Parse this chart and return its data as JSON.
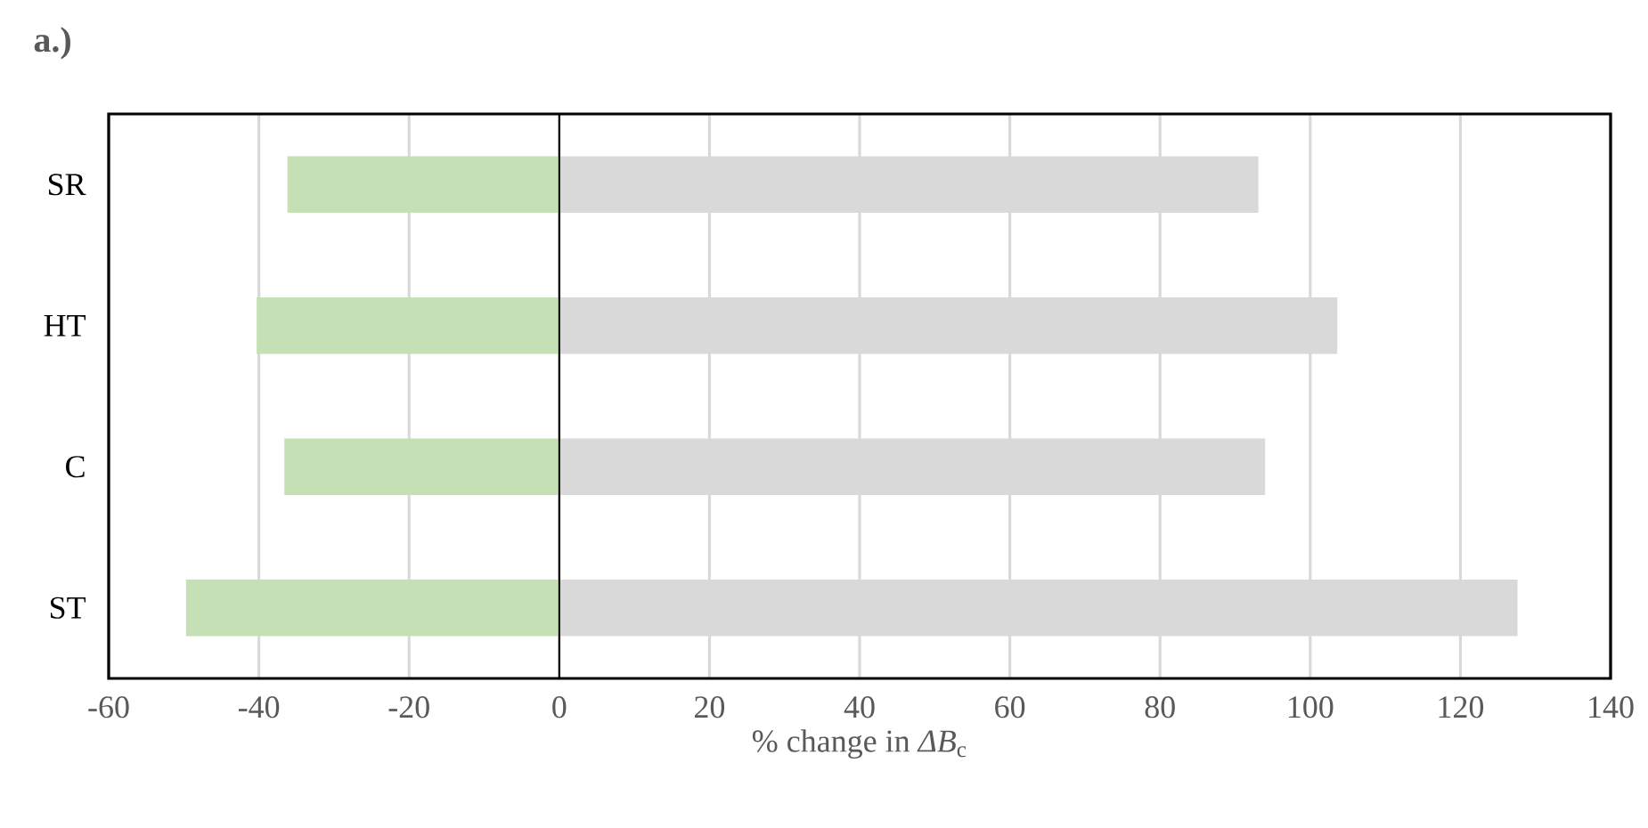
{
  "chart_data": {
    "type": "bar",
    "orientation": "horizontal",
    "stacked": true,
    "title": "a.)",
    "xlabel": "% change in *ΔB*$_{c}$",
    "categories": [
      "SR",
      "HT",
      "C",
      "ST"
    ],
    "series": [
      {
        "color": "#c5e0b4",
        "values": [
          -36.2,
          -40.3,
          -36.6,
          -49.7
        ]
      },
      {
        "color": "#d9d9d9",
        "values": [
          93.1,
          103.6,
          94.0,
          127.6
        ]
      }
    ],
    "xlim": [
      -60,
      140
    ],
    "xticks": [
      -60,
      -40,
      -20,
      0,
      20,
      40,
      60,
      80,
      100,
      120,
      140
    ],
    "grid": "x"
  }
}
